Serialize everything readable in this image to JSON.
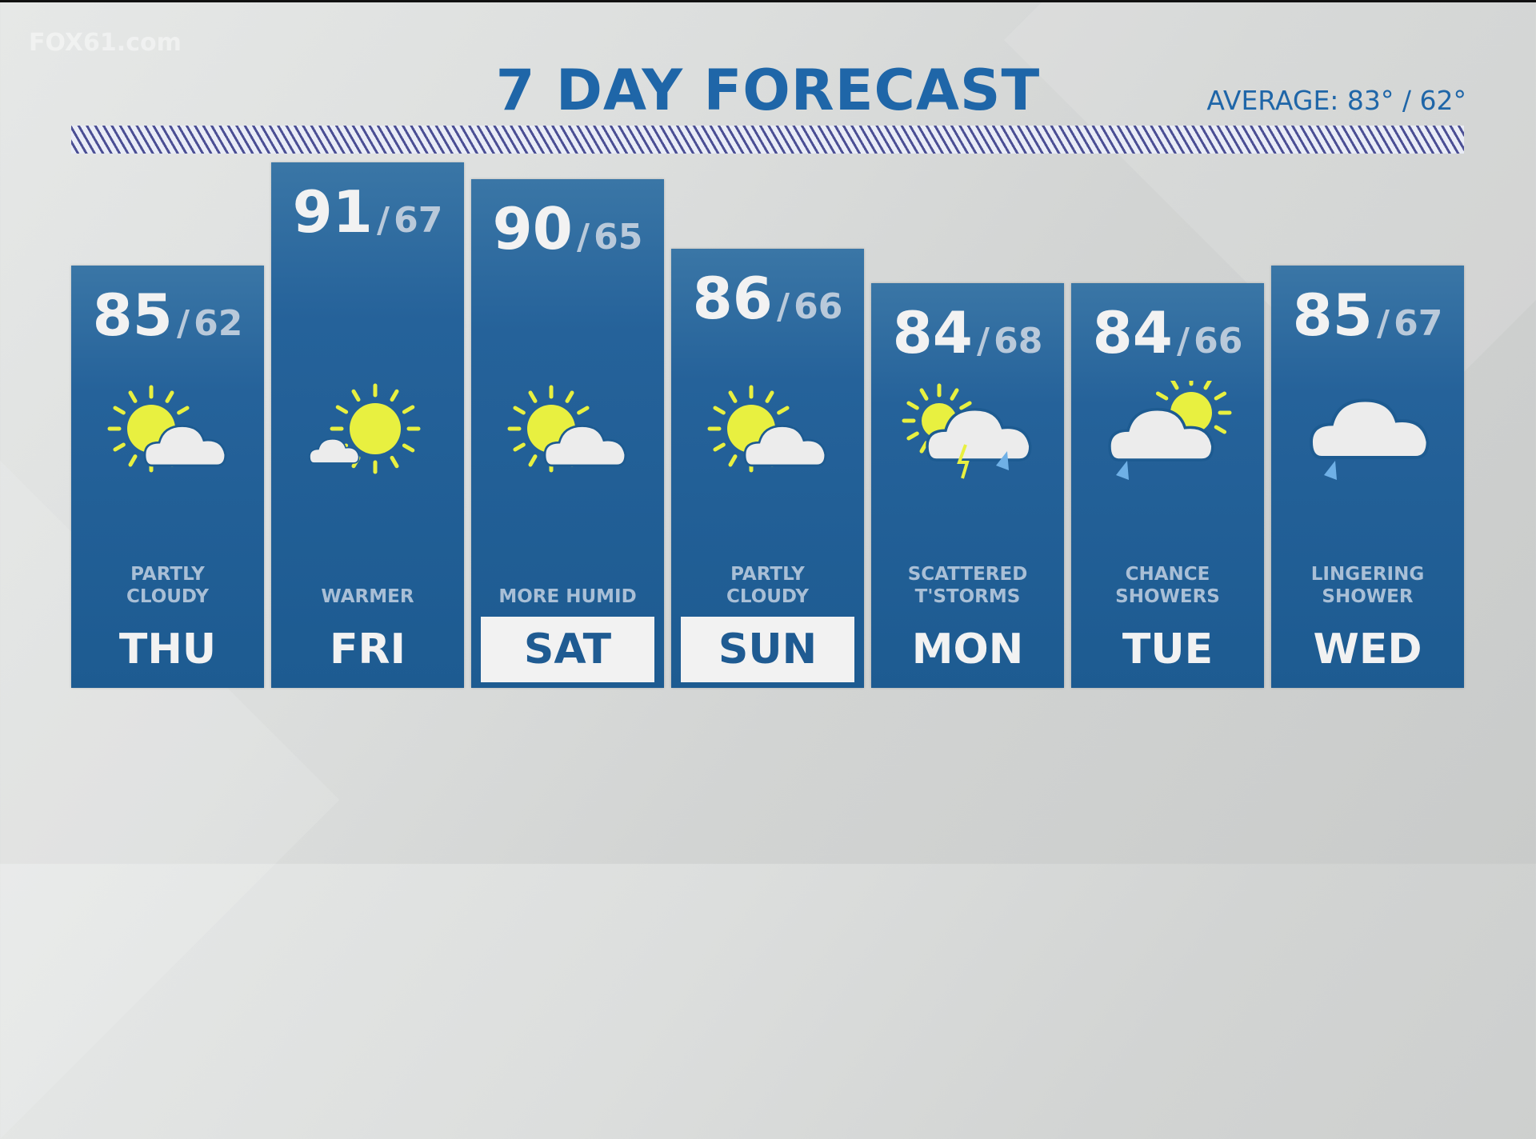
{
  "watermark": "FOX61.com",
  "title": "7 DAY FORECAST",
  "average": "AVERAGE: 83° / 62°",
  "colors": {
    "title": "#1f66a8",
    "column": "#1d5b91",
    "sun": "#e8f040",
    "cloud": "#ececec",
    "rain": "#6fb0e6"
  },
  "days": [
    {
      "day": "THU",
      "high": "85",
      "sep": "/",
      "low": "62",
      "condition": "PARTLY\nCLOUDY",
      "icon": "partly-cloudy-icon",
      "selected": false
    },
    {
      "day": "FRI",
      "high": "91",
      "sep": "/",
      "low": "67",
      "condition": "WARMER",
      "icon": "mostly-sunny-icon",
      "selected": false
    },
    {
      "day": "SAT",
      "high": "90",
      "sep": "/",
      "low": "65",
      "condition": "MORE HUMID",
      "icon": "partly-cloudy-icon",
      "selected": true
    },
    {
      "day": "SUN",
      "high": "86",
      "sep": "/",
      "low": "66",
      "condition": "PARTLY\nCLOUDY",
      "icon": "partly-cloudy-icon",
      "selected": true
    },
    {
      "day": "MON",
      "high": "84",
      "sep": "/",
      "low": "68",
      "condition": "SCATTERED\nT'STORMS",
      "icon": "thunderstorm-icon",
      "selected": false
    },
    {
      "day": "TUE",
      "high": "84",
      "sep": "/",
      "low": "66",
      "condition": "CHANCE\nSHOWERS",
      "icon": "sun-showers-icon",
      "selected": false
    },
    {
      "day": "WED",
      "high": "85",
      "sep": "/",
      "low": "67",
      "condition": "LINGERING\nSHOWER",
      "icon": "shower-icon",
      "selected": false
    }
  ]
}
